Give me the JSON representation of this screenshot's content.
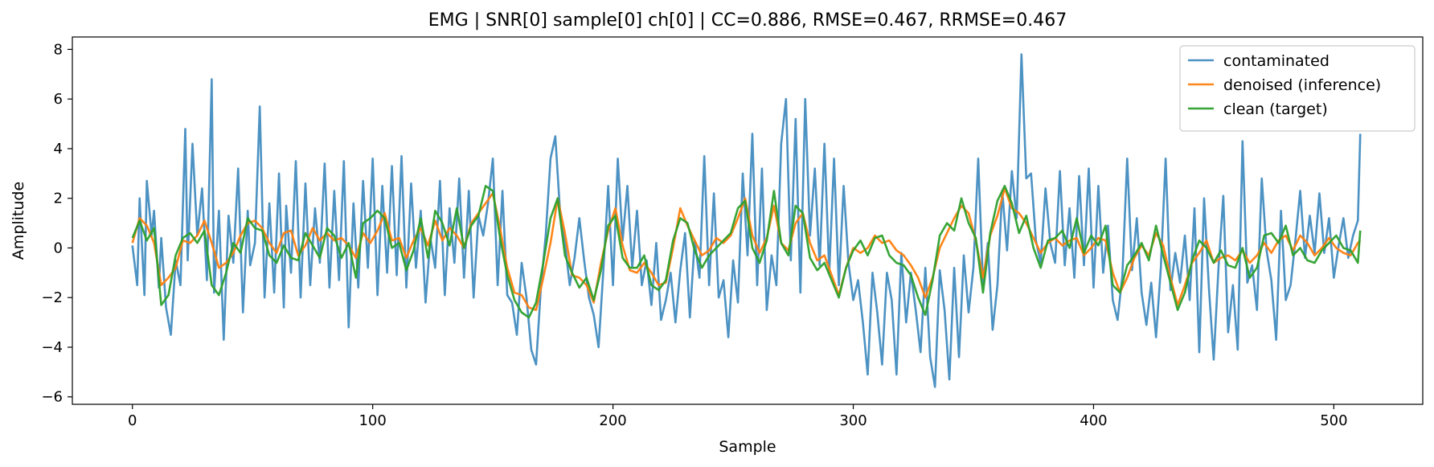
{
  "chart_data": {
    "type": "line",
    "title": "EMG | SNR[0] sample[0] ch[0] | CC=0.886, RMSE=0.467, RRMSE=0.467",
    "xlabel": "Sample",
    "ylabel": "Amplitude",
    "xlim": [
      -25,
      537
    ],
    "ylim": [
      -6.3,
      8.5
    ],
    "xticks": [
      0,
      100,
      200,
      300,
      400,
      500
    ],
    "yticks": [
      -6,
      -4,
      -2,
      0,
      2,
      4,
      6,
      8
    ],
    "xtick_labels": [
      "0",
      "100",
      "200",
      "300",
      "400",
      "500"
    ],
    "ytick_labels": [
      "−6",
      "−4",
      "−2",
      "0",
      "2",
      "4",
      "6",
      "8"
    ],
    "grid": false,
    "legend_position": "top-right",
    "series": [
      {
        "name": "contaminated",
        "color": "#1f77b4",
        "x": [
          0,
          2,
          3,
          5,
          6,
          8,
          9,
          11,
          12,
          14,
          16,
          18,
          20,
          22,
          23,
          25,
          27,
          29,
          31,
          33,
          34,
          36,
          38,
          40,
          42,
          44,
          46,
          48,
          49,
          51,
          53,
          55,
          57,
          59,
          61,
          63,
          64,
          66,
          68,
          70,
          72,
          74,
          76,
          78,
          80,
          82,
          84,
          86,
          88,
          90,
          92,
          94,
          96,
          98,
          100,
          102,
          104,
          106,
          108,
          110,
          112,
          114,
          116,
          118,
          120,
          122,
          124,
          126,
          128,
          130,
          132,
          134,
          136,
          138,
          140,
          142,
          144,
          146,
          148,
          150,
          152,
          154,
          156,
          158,
          160,
          162,
          164,
          166,
          168,
          170,
          172,
          174,
          176,
          178,
          180,
          182,
          184,
          186,
          188,
          190,
          192,
          194,
          196,
          198,
          200,
          202,
          204,
          206,
          208,
          210,
          212,
          214,
          216,
          218,
          220,
          222,
          224,
          226,
          228,
          230,
          232,
          234,
          236,
          238,
          240,
          242,
          244,
          246,
          248,
          250,
          252,
          254,
          256,
          258,
          260,
          262,
          264,
          266,
          268,
          270,
          272,
          274,
          276,
          278,
          280,
          282,
          284,
          286,
          288,
          290,
          292,
          294,
          296,
          298,
          300,
          302,
          304,
          306,
          308,
          310,
          312,
          314,
          316,
          318,
          320,
          322,
          324,
          326,
          328,
          330,
          332,
          334,
          336,
          338,
          340,
          342,
          344,
          346,
          348,
          350,
          352,
          354,
          356,
          358,
          360,
          362,
          364,
          366,
          368,
          370,
          372,
          374,
          376,
          378,
          380,
          382,
          384,
          386,
          388,
          390,
          392,
          394,
          396,
          398,
          400,
          402,
          404,
          406,
          408,
          410,
          412,
          414,
          416,
          418,
          420,
          422,
          424,
          426,
          428,
          430,
          432,
          434,
          436,
          438,
          440,
          442,
          444,
          446,
          448,
          450,
          452,
          454,
          456,
          458,
          460,
          462,
          464,
          466,
          468,
          470,
          472,
          474,
          476,
          478,
          480,
          482,
          484,
          486,
          488,
          490,
          492,
          494,
          496,
          498,
          500,
          502,
          504,
          506,
          508,
          510,
          511
        ],
        "y": [
          0.1,
          -1.5,
          2.0,
          -1.9,
          2.7,
          0.5,
          1.5,
          -1.6,
          0.4,
          -2.4,
          -3.5,
          -0.5,
          -1.5,
          4.8,
          -0.5,
          4.2,
          0.5,
          2.4,
          -1.3,
          6.8,
          -1.8,
          1.5,
          -3.7,
          1.3,
          -0.6,
          3.2,
          -2.6,
          1.5,
          -0.7,
          0.2,
          5.7,
          -2.0,
          1.8,
          -1.8,
          3.0,
          -2.4,
          1.7,
          -1.0,
          3.5,
          -2.0,
          2.6,
          -1.5,
          1.6,
          -0.6,
          3.4,
          -1.6,
          2.3,
          -1.3,
          3.5,
          -3.2,
          1.8,
          -1.6,
          2.7,
          -0.8,
          3.6,
          -1.9,
          2.5,
          -1.0,
          3.3,
          -1.1,
          3.7,
          -1.6,
          2.6,
          -0.8,
          1.5,
          -2.2,
          0.4,
          -0.8,
          2.7,
          -1.9,
          1.6,
          -0.6,
          2.8,
          -1.2,
          2.3,
          -2.0,
          1.3,
          0.5,
          1.8,
          3.6,
          -1.5,
          2.3,
          -1.9,
          -2.2,
          -3.5,
          -0.6,
          -2.0,
          -4.1,
          -4.7,
          -1.6,
          0.5,
          3.6,
          4.5,
          1.4,
          0.2,
          -1.5,
          -0.4,
          1.2,
          -0.5,
          -2.0,
          -2.7,
          -4.0,
          -0.9,
          2.5,
          -1.5,
          3.6,
          0.3,
          2.5,
          -0.8,
          1.5,
          -1.5,
          -0.5,
          -2.3,
          0.2,
          -2.9,
          -2.1,
          -1.0,
          -3.0,
          -0.9,
          0.6,
          -2.8,
          0.3,
          -1.2,
          3.7,
          -1.5,
          2.2,
          -2.0,
          -1.3,
          -3.6,
          -0.5,
          -2.2,
          3.0,
          -0.3,
          4.6,
          -1.5,
          3.2,
          -2.5,
          -0.3,
          -1.5,
          4.2,
          6.0,
          -0.5,
          5.2,
          -1.8,
          6.0,
          0.5,
          3.2,
          -0.7,
          4.2,
          -1.0,
          3.6,
          -1.5,
          2.5,
          -0.6,
          -2.1,
          -1.3,
          -3.0,
          -5.1,
          -1.0,
          -2.6,
          -4.7,
          -1.0,
          -2.1,
          -5.1,
          -0.2,
          -3.0,
          -1.0,
          -2.5,
          -4.2,
          -0.8,
          -4.4,
          -5.6,
          -0.9,
          -2.5,
          -5.3,
          -0.8,
          -4.4,
          -0.3,
          -2.6,
          -0.8,
          3.6,
          -1.5,
          0.2,
          -3.3,
          -1.5,
          2.3,
          -0.1,
          3.1,
          1.2,
          7.8,
          2.8,
          3.0,
          0.3,
          -0.6,
          2.4,
          0.2,
          -0.6,
          3.1,
          -0.7,
          1.6,
          -1.2,
          2.9,
          -0.7,
          3.2,
          -1.6,
          2.5,
          -1.0,
          0.9,
          -2.1,
          -2.9,
          -1.1,
          3.6,
          -0.9,
          1.2,
          -1.8,
          -3.1,
          -1.4,
          -3.6,
          -0.8,
          3.6,
          -1.7,
          -0.2,
          -1.4,
          0.5,
          -2.1,
          1.6,
          -4.2,
          2.0,
          -1.6,
          -4.5,
          -0.8,
          2.1,
          -3.4,
          -1.5,
          -4.1,
          4.3,
          -1.4,
          -0.7,
          -2.5,
          2.8,
          -0.1,
          -1.3,
          -3.7,
          1.5,
          -2.1,
          -1.5,
          0.3,
          2.3,
          -0.4,
          1.3,
          -0.2,
          2.2,
          -0.2,
          1.2,
          -1.2,
          0.1,
          1.2,
          -0.4,
          0.5,
          1.1,
          4.6
        ]
      },
      {
        "name": "denoised (inference)",
        "color": "#ff7f0e",
        "x": [
          0,
          3,
          6,
          9,
          12,
          15,
          18,
          21,
          24,
          27,
          30,
          33,
          36,
          39,
          42,
          45,
          48,
          51,
          54,
          57,
          60,
          63,
          66,
          69,
          72,
          75,
          78,
          81,
          84,
          87,
          90,
          93,
          96,
          99,
          102,
          105,
          108,
          111,
          114,
          117,
          120,
          123,
          126,
          129,
          132,
          135,
          138,
          141,
          144,
          147,
          150,
          153,
          156,
          159,
          162,
          165,
          168,
          171,
          174,
          177,
          180,
          183,
          186,
          189,
          192,
          195,
          198,
          201,
          204,
          207,
          210,
          213,
          216,
          219,
          222,
          225,
          228,
          231,
          234,
          237,
          240,
          243,
          246,
          249,
          252,
          255,
          258,
          261,
          264,
          267,
          270,
          273,
          276,
          279,
          282,
          285,
          288,
          291,
          294,
          297,
          300,
          303,
          306,
          309,
          312,
          315,
          318,
          321,
          324,
          327,
          330,
          333,
          336,
          339,
          342,
          345,
          348,
          351,
          354,
          357,
          360,
          363,
          366,
          369,
          372,
          375,
          378,
          381,
          384,
          387,
          390,
          393,
          396,
          399,
          402,
          405,
          408,
          411,
          414,
          417,
          420,
          423,
          426,
          429,
          432,
          435,
          438,
          441,
          444,
          447,
          450,
          453,
          456,
          459,
          462,
          465,
          468,
          471,
          474,
          477,
          480,
          483,
          486,
          489,
          492,
          495,
          498,
          501,
          504,
          507,
          510,
          511
        ],
        "y": [
          0.2,
          1.2,
          0.9,
          0.2,
          -1.5,
          -1.2,
          -0.8,
          0.3,
          0.2,
          0.5,
          1.1,
          0.2,
          -0.8,
          -0.6,
          -0.2,
          0.5,
          1.0,
          1.1,
          0.8,
          0.2,
          -0.2,
          0.6,
          0.7,
          -0.3,
          0.1,
          0.8,
          0.3,
          0.6,
          0.3,
          0.4,
          0.1,
          -0.4,
          0.6,
          0.2,
          0.7,
          1.4,
          0.3,
          0.4,
          -0.4,
          0.3,
          0.8,
          0.1,
          1.1,
          0.3,
          0.8,
          0.5,
          0.0,
          1.0,
          1.4,
          1.8,
          2.2,
          0.8,
          -0.8,
          -1.8,
          -1.9,
          -2.4,
          -2.5,
          -1.2,
          0.2,
          2.0,
          0.6,
          -1.1,
          -1.2,
          -1.5,
          -2.2,
          -0.6,
          0.7,
          1.6,
          0.1,
          -0.9,
          -1.0,
          -0.6,
          -1.0,
          -1.5,
          -1.4,
          0.0,
          1.6,
          0.9,
          0.3,
          -0.3,
          -0.1,
          0.4,
          0.2,
          0.5,
          1.2,
          2.0,
          0.5,
          -0.2,
          0.4,
          1.7,
          0.2,
          -0.1,
          1.0,
          1.4,
          0.2,
          -0.5,
          -0.3,
          -1.1,
          -1.9,
          -0.8,
          0.0,
          -0.2,
          0.0,
          0.5,
          0.2,
          0.3,
          -0.1,
          -0.3,
          -0.7,
          -1.2,
          -2.0,
          -1.2,
          0.0,
          0.6,
          1.2,
          1.7,
          1.4,
          0.3,
          -1.2,
          0.5,
          1.3,
          2.4,
          1.6,
          1.4,
          1.0,
          0.4,
          -0.2,
          0.2,
          0.4,
          0.1,
          0.3,
          0.4,
          -0.3,
          0.0,
          0.4,
          0.3,
          -1.0,
          -1.8,
          -1.2,
          -0.4,
          0.1,
          -0.3,
          0.6,
          0.1,
          -1.2,
          -2.3,
          -1.5,
          -0.6,
          -0.2,
          0.3,
          -0.6,
          -0.4,
          -0.3,
          -0.5,
          -0.1,
          -0.6,
          -0.3,
          0.2,
          -0.2,
          0.3,
          0.5,
          -0.1,
          0.5,
          0.2,
          -0.3,
          0.0,
          0.4,
          0.0,
          -0.2,
          -0.3,
          0.2,
          0.3
        ]
      },
      {
        "name": "clean (target)",
        "color": "#2ca02c",
        "x": [
          0,
          3,
          6,
          9,
          12,
          15,
          18,
          21,
          24,
          27,
          30,
          33,
          36,
          39,
          42,
          45,
          48,
          51,
          54,
          57,
          60,
          63,
          66,
          69,
          72,
          75,
          78,
          81,
          84,
          87,
          90,
          93,
          96,
          99,
          102,
          105,
          108,
          111,
          114,
          117,
          120,
          123,
          126,
          129,
          132,
          135,
          138,
          141,
          144,
          147,
          150,
          153,
          156,
          159,
          162,
          165,
          168,
          171,
          174,
          177,
          180,
          183,
          186,
          189,
          192,
          195,
          198,
          201,
          204,
          207,
          210,
          213,
          216,
          219,
          222,
          225,
          228,
          231,
          234,
          237,
          240,
          243,
          246,
          249,
          252,
          255,
          258,
          261,
          264,
          267,
          270,
          273,
          276,
          279,
          282,
          285,
          288,
          291,
          294,
          297,
          300,
          303,
          306,
          309,
          312,
          315,
          318,
          321,
          324,
          327,
          330,
          333,
          336,
          339,
          342,
          345,
          348,
          351,
          354,
          357,
          360,
          363,
          366,
          369,
          372,
          375,
          378,
          381,
          384,
          387,
          390,
          393,
          396,
          399,
          402,
          405,
          408,
          411,
          414,
          417,
          420,
          423,
          426,
          429,
          432,
          435,
          438,
          441,
          444,
          447,
          450,
          453,
          456,
          459,
          462,
          465,
          468,
          471,
          474,
          477,
          480,
          483,
          486,
          489,
          492,
          495,
          498,
          501,
          504,
          507,
          510,
          511
        ],
        "y": [
          0.4,
          1.1,
          0.3,
          0.8,
          -2.3,
          -1.9,
          -0.3,
          0.4,
          0.6,
          0.2,
          0.7,
          -1.5,
          -1.9,
          -1.0,
          0.2,
          -0.2,
          1.2,
          0.8,
          0.7,
          -0.3,
          -0.6,
          0.1,
          -0.4,
          -0.5,
          0.6,
          0.1,
          -0.4,
          0.8,
          0.5,
          -0.4,
          0.2,
          -1.2,
          1.0,
          1.2,
          1.5,
          1.2,
          0.0,
          0.2,
          -0.9,
          -0.1,
          1.2,
          -0.4,
          1.5,
          1.0,
          0.1,
          1.6,
          0.0,
          0.9,
          1.3,
          2.5,
          2.3,
          0.4,
          -1.1,
          -2.1,
          -2.6,
          -2.8,
          -2.2,
          -0.6,
          1.2,
          2.0,
          -0.3,
          -1.0,
          -1.6,
          -1.2,
          -2.1,
          -0.9,
          0.9,
          1.3,
          -0.4,
          -0.8,
          -0.8,
          -0.3,
          -1.5,
          -1.7,
          -1.3,
          0.3,
          1.2,
          1.0,
          -0.1,
          -0.8,
          -0.3,
          0.0,
          0.3,
          0.6,
          1.6,
          1.9,
          0.0,
          -0.6,
          0.3,
          2.3,
          0.2,
          -0.3,
          1.7,
          1.4,
          -0.4,
          -0.9,
          -0.6,
          -1.3,
          -2.0,
          -0.8,
          -0.1,
          0.3,
          -0.3,
          0.4,
          0.5,
          -0.3,
          -0.6,
          -0.7,
          -1.1,
          -2.0,
          -2.7,
          -1.3,
          0.5,
          1.0,
          0.7,
          2.0,
          1.0,
          0.4,
          -1.8,
          0.6,
          1.9,
          2.5,
          1.8,
          0.6,
          1.3,
          0.0,
          -0.8,
          0.3,
          0.4,
          0.7,
          0.0,
          1.2,
          -0.2,
          0.5,
          0.1,
          0.9,
          -1.5,
          -1.8,
          -0.7,
          -0.3,
          0.2,
          -0.5,
          0.9,
          -0.3,
          -1.4,
          -2.5,
          -1.8,
          -0.5,
          0.3,
          0.0,
          -0.6,
          -0.1,
          -0.7,
          -0.8,
          0.0,
          -1.2,
          -0.8,
          0.5,
          0.6,
          0.2,
          0.9,
          -0.3,
          0.0,
          -0.5,
          -0.6,
          -0.1,
          0.2,
          0.5,
          0.0,
          -0.1,
          -0.6,
          0.7
        ]
      }
    ]
  }
}
